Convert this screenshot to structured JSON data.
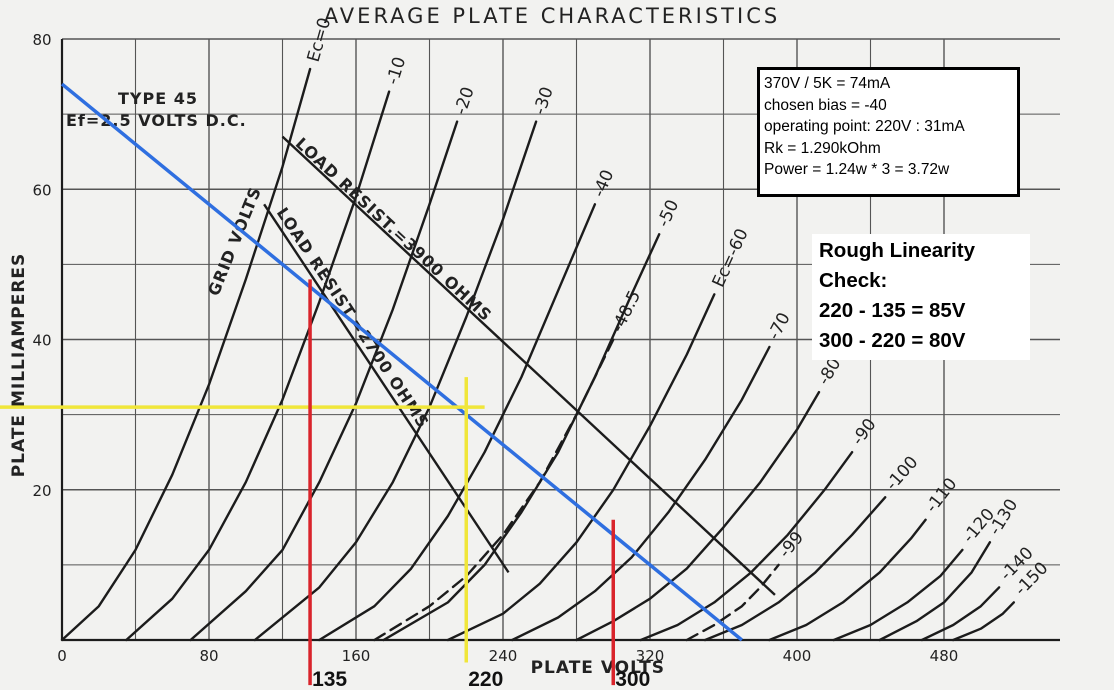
{
  "chart_data": {
    "type": "line",
    "title": "AVERAGE PLATE CHARACTERISTICS",
    "xlabel": "PLATE VOLTS",
    "ylabel": "PLATE MILLIAMPERES",
    "xlim": [
      0,
      500
    ],
    "ylim": [
      0,
      80
    ],
    "x_ticks": [
      "0",
      "80",
      "160",
      "240",
      "320",
      "400",
      "480"
    ],
    "y_ticks": [
      "80",
      "60",
      "40",
      "20"
    ],
    "grid": true,
    "tube_label": {
      "type": "TYPE 45",
      "filament": "Ef=2.5 VOLTS D.C."
    },
    "grid_volts_label": "GRID VOLTS",
    "grid_curves": [
      {
        "label": "Ec=0",
        "bias": 0,
        "mu": 0,
        "points": [
          [
            0,
            0
          ],
          [
            20,
            4.5
          ],
          [
            40,
            12
          ],
          [
            60,
            22
          ],
          [
            80,
            34
          ],
          [
            100,
            48
          ],
          [
            120,
            63
          ],
          [
            135,
            76
          ]
        ]
      },
      {
        "label": "-10",
        "bias": -10,
        "mu": 35,
        "points": [
          [
            35,
            0
          ],
          [
            60,
            5.5
          ],
          [
            80,
            12
          ],
          [
            100,
            21
          ],
          [
            120,
            32
          ],
          [
            140,
            45
          ],
          [
            160,
            59
          ],
          [
            178,
            73
          ]
        ]
      },
      {
        "label": "-20",
        "bias": -20,
        "mu": 70,
        "points": [
          [
            70,
            0
          ],
          [
            100,
            6.5
          ],
          [
            120,
            12
          ],
          [
            140,
            21
          ],
          [
            160,
            31.5
          ],
          [
            180,
            44
          ],
          [
            200,
            58
          ],
          [
            215,
            69
          ]
        ]
      },
      {
        "label": "-30",
        "bias": -30,
        "mu": 105,
        "points": [
          [
            105,
            0
          ],
          [
            140,
            7
          ],
          [
            160,
            13
          ],
          [
            180,
            21
          ],
          [
            200,
            31
          ],
          [
            220,
            43
          ],
          [
            240,
            56
          ],
          [
            258,
            69
          ]
        ]
      },
      {
        "label": "-40",
        "bias": -40,
        "mu": 140,
        "points": [
          [
            140,
            0
          ],
          [
            170,
            4.5
          ],
          [
            190,
            9.5
          ],
          [
            210,
            16.5
          ],
          [
            230,
            25
          ],
          [
            250,
            35
          ],
          [
            270,
            46.5
          ],
          [
            290,
            58
          ]
        ]
      },
      {
        "label": "-48.5",
        "bias": -48.5,
        "mu": 170,
        "dashed": true,
        "points": [
          [
            170,
            0
          ],
          [
            200,
            4.5
          ],
          [
            220,
            8.5
          ],
          [
            240,
            14
          ],
          [
            260,
            21
          ],
          [
            280,
            30
          ],
          [
            300,
            40
          ]
        ]
      },
      {
        "label": "-50",
        "bias": -50,
        "mu": 175,
        "points": [
          [
            175,
            0
          ],
          [
            210,
            5
          ],
          [
            230,
            10
          ],
          [
            250,
            17
          ],
          [
            270,
            25
          ],
          [
            290,
            35
          ],
          [
            310,
            46
          ],
          [
            325,
            54
          ]
        ]
      },
      {
        "label": "Ec=-60",
        "bias": -60,
        "mu": 210,
        "points": [
          [
            210,
            0
          ],
          [
            240,
            3.5
          ],
          [
            260,
            7.5
          ],
          [
            280,
            13
          ],
          [
            300,
            20
          ],
          [
            320,
            28.5
          ],
          [
            340,
            38
          ],
          [
            355,
            46
          ]
        ]
      },
      {
        "label": "-70",
        "bias": -70,
        "mu": 245,
        "points": [
          [
            245,
            0
          ],
          [
            270,
            3
          ],
          [
            290,
            6.5
          ],
          [
            310,
            11
          ],
          [
            330,
            17
          ],
          [
            350,
            24
          ],
          [
            370,
            32
          ],
          [
            385,
            39
          ]
        ]
      },
      {
        "label": "-80",
        "bias": -80,
        "mu": 280,
        "points": [
          [
            280,
            0
          ],
          [
            300,
            2.5
          ],
          [
            320,
            5.5
          ],
          [
            340,
            9.5
          ],
          [
            360,
            15
          ],
          [
            380,
            21
          ],
          [
            400,
            28
          ],
          [
            412,
            33
          ]
        ]
      },
      {
        "label": "-90",
        "bias": -90,
        "mu": 315,
        "points": [
          [
            315,
            0
          ],
          [
            335,
            2
          ],
          [
            355,
            5
          ],
          [
            375,
            9
          ],
          [
            395,
            14
          ],
          [
            415,
            20
          ],
          [
            430,
            25
          ]
        ]
      },
      {
        "label": "-99",
        "bias": -99,
        "mu": 340,
        "dashed": true,
        "points": [
          [
            340,
            0
          ],
          [
            355,
            2
          ],
          [
            370,
            4.5
          ],
          [
            380,
            7
          ],
          [
            390,
            10
          ]
        ]
      },
      {
        "label": "-100",
        "bias": -100,
        "mu": 350,
        "points": [
          [
            350,
            0
          ],
          [
            370,
            2
          ],
          [
            390,
            5
          ],
          [
            410,
            9
          ],
          [
            430,
            14
          ],
          [
            448,
            19
          ]
        ]
      },
      {
        "label": "-110",
        "bias": -110,
        "mu": 385,
        "points": [
          [
            385,
            0
          ],
          [
            405,
            2
          ],
          [
            425,
            5
          ],
          [
            445,
            9
          ],
          [
            462,
            13.5
          ],
          [
            470,
            16
          ]
        ]
      },
      {
        "label": "-120",
        "bias": -120,
        "mu": 420,
        "points": [
          [
            420,
            0
          ],
          [
            440,
            2
          ],
          [
            460,
            5
          ],
          [
            478,
            8.5
          ],
          [
            490,
            12
          ]
        ]
      },
      {
        "label": "-130",
        "bias": -130,
        "mu": 445,
        "points": [
          [
            445,
            0
          ],
          [
            465,
            2.5
          ],
          [
            480,
            5
          ],
          [
            495,
            9
          ],
          [
            505,
            13
          ]
        ]
      },
      {
        "label": "-140",
        "bias": -140,
        "mu": 468,
        "points": [
          [
            468,
            0
          ],
          [
            485,
            2
          ],
          [
            500,
            4.5
          ],
          [
            510,
            7
          ]
        ]
      },
      {
        "label": "-150",
        "bias": -150,
        "mu": 485,
        "points": [
          [
            485,
            0
          ],
          [
            500,
            1.5
          ],
          [
            512,
            3.5
          ],
          [
            518,
            5
          ]
        ]
      }
    ],
    "load_lines": [
      {
        "label": "LOAD RESIST.=3900 OHMS",
        "points": [
          [
            120,
            67
          ],
          [
            388,
            6
          ]
        ]
      },
      {
        "label": "LOAD RESIST.=2700 OHMS",
        "points": [
          [
            110,
            58
          ],
          [
            243,
            9
          ]
        ]
      }
    ],
    "overlay_lines": [
      {
        "name": "load-line-5k",
        "color": "#2f6fe0",
        "points": [
          [
            0,
            74
          ],
          [
            370,
            0
          ]
        ]
      },
      {
        "name": "bias-current-31mA",
        "color": "#f0e63a",
        "points": [
          [
            -40,
            31
          ],
          [
            230,
            31
          ]
        ]
      },
      {
        "name": "plate-220V",
        "color": "#f0e63a",
        "points": [
          [
            220,
            35
          ],
          [
            220,
            -3
          ]
        ]
      },
      {
        "name": "plate-135V",
        "color": "#d9242b",
        "points": [
          [
            135,
            48
          ],
          [
            135,
            -6
          ]
        ]
      },
      {
        "name": "plate-300V",
        "color": "#d9242b",
        "points": [
          [
            300,
            16
          ],
          [
            300,
            -6
          ]
        ]
      }
    ],
    "markers": [
      {
        "label": "135",
        "x": 135
      },
      {
        "label": "220",
        "x": 220
      },
      {
        "label": "300",
        "x": 300
      }
    ]
  },
  "calc_box": {
    "lines": [
      "370V / 5K = 74mA",
      "chosen bias = -40",
      "operating point: 220V : 31mA",
      "Rk = 1.290kOhm",
      "Power = 1.24w * 3 = 3.72w"
    ]
  },
  "linearity_box": {
    "lines": [
      "Rough Linearity",
      "Check:",
      "220 - 135 = 85V",
      "300 - 220 = 80V"
    ]
  },
  "colors": {
    "paper": "#f2f2f0",
    "ink": "#1c1c1c",
    "load_line": "#2f6fe0",
    "yellow": "#f0e63a",
    "red": "#d9242b"
  }
}
